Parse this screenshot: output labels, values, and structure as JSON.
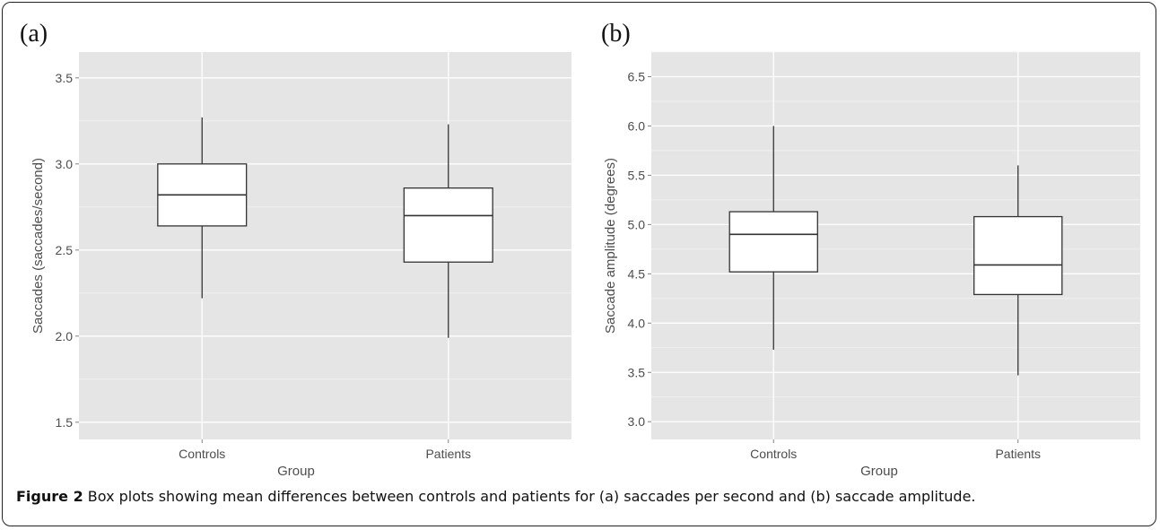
{
  "figure": {
    "caption_lead": "Figure 2",
    "caption_text": " Box plots showing mean differences between controls and patients for (a) saccades per second and (b) saccade amplitude."
  },
  "colors": {
    "panel_background": "#e5e5e5",
    "grid": "#ffffff",
    "box_fill": "#ffffff",
    "box_stroke": "#333333"
  },
  "chart_data": [
    {
      "panel_label": "(a)",
      "type": "boxplot",
      "title": "",
      "xlabel": "Group",
      "ylabel": "Saccades (saccades/second)",
      "categories": [
        "Controls",
        "Patients"
      ],
      "ylim": [
        1.4,
        3.65
      ],
      "yticks": [
        1.5,
        2.0,
        2.5,
        3.0,
        3.5
      ],
      "ytick_labels": [
        "1.5",
        "2.0",
        "2.5",
        "3.0",
        "3.5"
      ],
      "grid": true,
      "boxes": [
        {
          "category": "Controls",
          "min": 2.22,
          "q1": 2.64,
          "median": 2.82,
          "q3": 3.0,
          "max": 3.27
        },
        {
          "category": "Patients",
          "min": 1.99,
          "q1": 2.43,
          "median": 2.7,
          "q3": 2.86,
          "max": 3.23
        }
      ]
    },
    {
      "panel_label": "(b)",
      "type": "boxplot",
      "title": "",
      "xlabel": "Group",
      "ylabel": "Saccade amplitude (degrees)",
      "categories": [
        "Controls",
        "Patients"
      ],
      "ylim": [
        2.82,
        6.75
      ],
      "yticks": [
        3.0,
        3.5,
        4.0,
        4.5,
        5.0,
        5.5,
        6.0,
        6.5
      ],
      "ytick_labels": [
        "3.0",
        "3.5",
        "4.0",
        "4.5",
        "5.0",
        "5.5",
        "6.0",
        "6.5"
      ],
      "grid": true,
      "boxes": [
        {
          "category": "Controls",
          "min": 3.73,
          "q1": 4.52,
          "median": 4.9,
          "q3": 5.13,
          "max": 6.0
        },
        {
          "category": "Patients",
          "min": 3.47,
          "q1": 4.29,
          "median": 4.59,
          "q3": 5.08,
          "max": 5.6
        }
      ]
    }
  ]
}
